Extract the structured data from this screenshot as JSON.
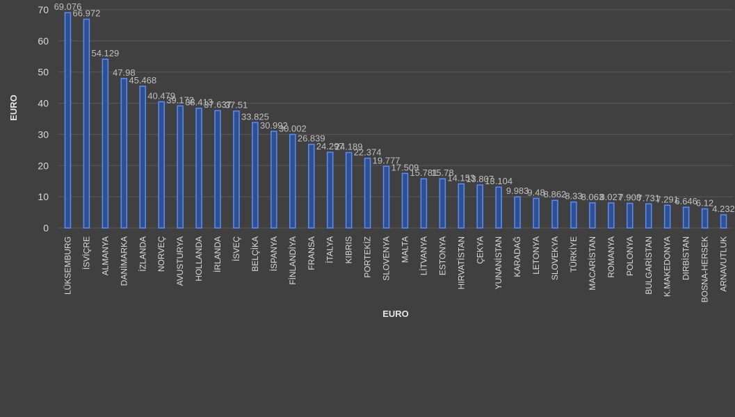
{
  "chart_data": {
    "type": "bar",
    "categories": [
      "LÜKSEMBURG",
      "İSVİÇRE",
      "ALMANYA",
      "DANİMARKA",
      "İZLANDA",
      "NORVEÇ",
      "AVUSTURYA",
      "HOLLANDA",
      "İRLANDA",
      "İSVEÇ",
      "BELÇİKA",
      "İSPANYA",
      "FİNLANDİYA",
      "FRANSA",
      "İTALYA",
      "KIBRIS",
      "PORTEKİZ",
      "SLOVENYA",
      "MALTA",
      "LİTVANYA",
      "ESTONYA",
      "HIRVATİSTAN",
      "ÇEKYA",
      "YUNANİSTAN",
      "KARADAĞ",
      "LETONYA",
      "SLOVEKYA",
      "TÜRKİYE",
      "MACARİSTAN",
      "ROMANYA",
      "POLONYA",
      "BULGARİSTAN",
      "K.MAKEDONYA",
      "DIRBİSTAN",
      "BOSNA-HERSEK",
      "ARNAVUTLUK"
    ],
    "values": [
      69.076,
      66.972,
      54.129,
      47.98,
      45.468,
      40.479,
      39.172,
      38.413,
      37.637,
      37.51,
      33.825,
      30.992,
      30.002,
      26.839,
      24.297,
      24.189,
      22.374,
      19.777,
      17.509,
      15.781,
      15.78,
      14.153,
      13.807,
      13.104,
      9.983,
      9.48,
      8.862,
      8.33,
      8.063,
      8.027,
      7.908,
      7.731,
      7.291,
      6.646,
      6.12,
      4.232
    ],
    "data_labels": [
      "69.076",
      "66.972",
      "54.129",
      "47.98",
      "45.468",
      "40.479",
      "39.172",
      "38.413",
      "37.637",
      "37.51",
      "33.825",
      "30.992",
      "30.002",
      "26.839",
      "24.297",
      "24.189",
      "22.374",
      "19.777",
      "17.509",
      "15.781",
      "15.78",
      "14.153",
      "13.807",
      "13.104",
      "9.983",
      "9.48",
      "8.862",
      "8.33",
      "8.063",
      "8.027",
      "7.908",
      "7.731",
      "7.291",
      "6.646",
      "6.12",
      "4.232"
    ],
    "xlabel": "EURO",
    "ylabel": "EURO",
    "ylim": [
      0,
      70
    ],
    "yticks": [
      0,
      10,
      20,
      30,
      40,
      50,
      60,
      70
    ],
    "grid": true,
    "colors": {
      "background": "#404040",
      "bar_fill": "#2f4f8f",
      "bar_edge": "#5b8cff",
      "grid": "#595959",
      "text": "#d9d9d9"
    }
  }
}
